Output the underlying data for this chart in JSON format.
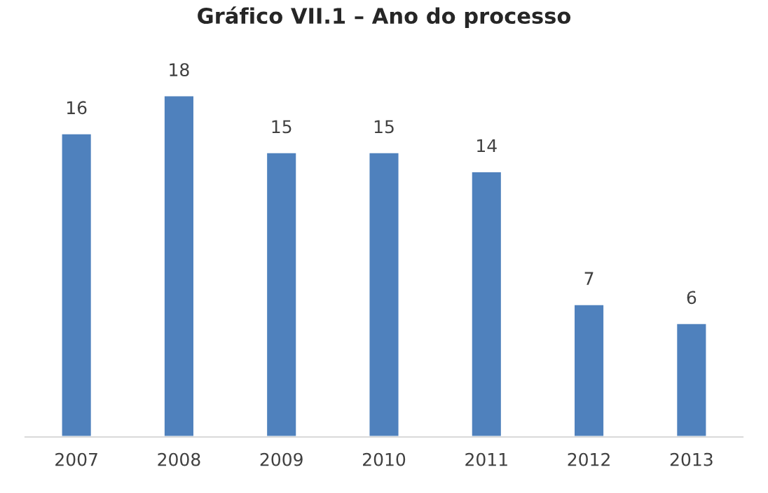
{
  "chart_data": {
    "type": "bar",
    "title": "Gráfico VII.1 – Ano do processo",
    "categories": [
      "2007",
      "2008",
      "2009",
      "2010",
      "2011",
      "2012",
      "2013"
    ],
    "values": [
      16,
      18,
      15,
      15,
      14,
      7,
      6
    ],
    "color": "#4f81bd",
    "data_labels": true
  }
}
